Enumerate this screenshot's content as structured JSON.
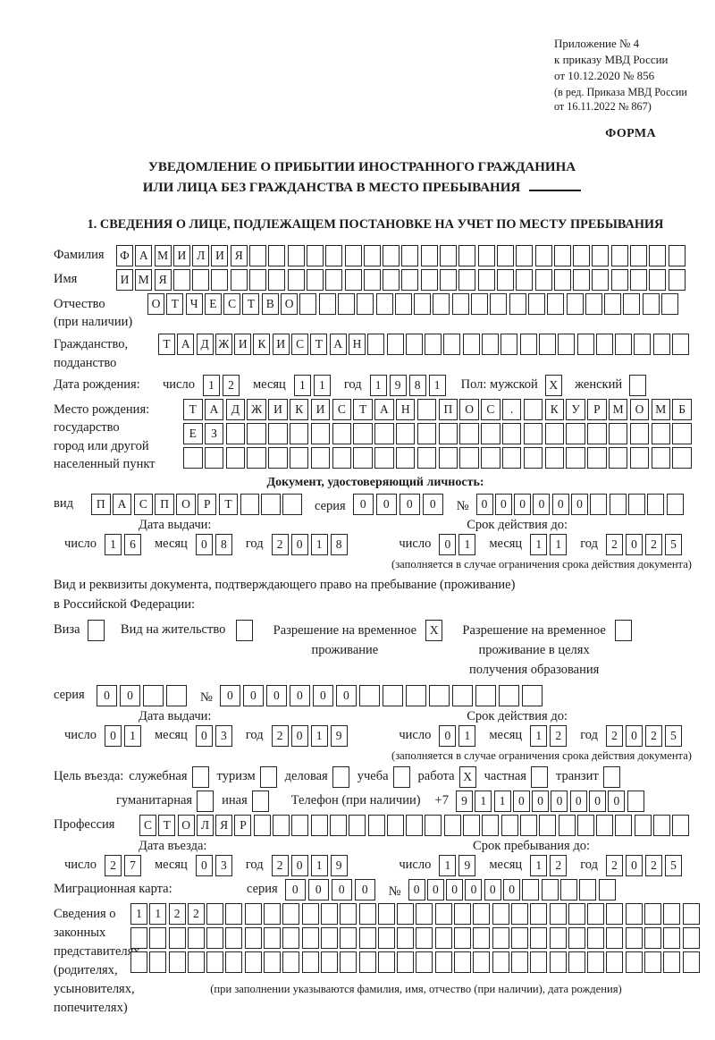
{
  "header": {
    "note_lines": [
      "Приложение № 4",
      "к приказу МВД России",
      "от 10.12.2020 № 856"
    ],
    "note_sub_lines": [
      "(в ред. Приказа МВД России",
      "от 16.11.2022 № 867)"
    ],
    "form_label": "ФОРМА"
  },
  "title": {
    "line1": "УВЕДОМЛЕНИЕ О ПРИБЫТИИ ИНОСТРАННОГО ГРАЖДАНИНА",
    "line2": "ИЛИ ЛИЦА БЕЗ ГРАЖДАНСТВА В МЕСТО ПРЕБЫВАНИЯ"
  },
  "section1_heading": "1. СВЕДЕНИЯ О ЛИЦЕ, ПОДЛЕЖАЩЕМ ПОСТАНОВКЕ НА УЧЕТ ПО МЕСТУ ПРЕБЫВАНИЯ",
  "labels": {
    "surname": "Фамилия",
    "name": "Имя",
    "patronymic": "Отчество\n(при наличии)",
    "citizenship": "Гражданство,\nподданство",
    "birth_date": "Дата рождения:",
    "day": "число",
    "month": "месяц",
    "year": "год",
    "sex_male": "Пол: мужской",
    "sex_female": "женский",
    "birth_place": "Место рождения:\nгосударство\nгород или другой\nнаселенный пункт",
    "identity_doc_heading": "Документ, удостоверяющий личность:",
    "doc_type": "вид",
    "series": "серия",
    "number": "№",
    "issue_date": "Дата выдачи:",
    "valid_until": "Срок действия до:",
    "restriction_note": "(заполняется в случае ограничения срока действия документа)",
    "residence_doc_line1": "Вид и реквизиты документа, подтверждающего право на пребывание (проживание)",
    "residence_doc_line2": "в Российской Федерации:",
    "visa": "Виза",
    "residence_permit": "Вид на жительство",
    "temp_permit": "Разрешение на временное\nпроживание",
    "edu_permit": "Разрешение на временное\nпроживание в целях\nполучения образования",
    "purpose": "Цель въезда:",
    "phone": "Телефон (при наличии)",
    "phone_prefix": "+7",
    "profession": "Профессия",
    "entry_date": "Дата въезда:",
    "stay_until": "Срок пребывания до:",
    "migration_card": "Миграционная карта:",
    "representatives": "Сведения о\nзаконных\nпредставителях\n(родителях,\nусыновителях,\nпопечителях)",
    "representatives_note": "(при заполнении указываются фамилия, имя, отчество (при наличии), дата рождения)"
  },
  "boxes": {
    "surname": {
      "cells": 30,
      "value": "ФАМИЛИЯ"
    },
    "name": {
      "cells": 30,
      "value": "ИМЯ"
    },
    "patronymic": {
      "cells": 28,
      "value": "ОТЧЕСТВО"
    },
    "citizenship": {
      "cells": 28,
      "value": "ТАДЖИКИСТАН"
    },
    "birth_place_row1": {
      "cells": 24,
      "value": "ТАДЖИКИСТАН ПОС. КУРМОМБ"
    },
    "birth_place_row2": {
      "cells": 24,
      "value": "ЕЗ"
    },
    "birth_place_row3": {
      "cells": 24,
      "value": ""
    },
    "doc_type": {
      "cells": 10,
      "value": "ПАСПОРТ"
    },
    "doc_series": {
      "cells": 4,
      "value": "0000"
    },
    "doc_number": {
      "cells": 11,
      "value": "000000"
    },
    "permit_series": {
      "cells": 4,
      "value": "00"
    },
    "permit_number": {
      "cells": 14,
      "value": "000000"
    },
    "phone": {
      "cells": 10,
      "value": "911000000"
    },
    "profession": {
      "cells": 29,
      "value": "СТОЛЯР"
    },
    "migration_series": {
      "cells": 4,
      "value": "0000"
    },
    "migration_number": {
      "cells": 11,
      "value": "000000"
    },
    "representatives_row1": {
      "cells": 30,
      "value": "1122"
    },
    "representatives_row2": {
      "cells": 30,
      "value": ""
    },
    "representatives_row3": {
      "cells": 30,
      "value": ""
    }
  },
  "dates": {
    "birth": {
      "day": "12",
      "month": "11",
      "year": "1981"
    },
    "doc_issue": {
      "day": "16",
      "month": "08",
      "year": "2018"
    },
    "doc_valid": {
      "day": "01",
      "month": "11",
      "year": "2025"
    },
    "permit_issue": {
      "day": "01",
      "month": "03",
      "year": "2019"
    },
    "permit_valid": {
      "day": "01",
      "month": "12",
      "year": "2025"
    },
    "entry": {
      "day": "27",
      "month": "03",
      "year": "2019"
    },
    "stay_until": {
      "day": "19",
      "month": "12",
      "year": "2025"
    }
  },
  "checkboxes": {
    "male": true,
    "female": false,
    "visa": false,
    "residence_permit": false,
    "temp_permit": true,
    "edu_permit": false
  },
  "purpose_options_row1": [
    {
      "label": "служебная",
      "checked": false
    },
    {
      "label": "туризм",
      "checked": false
    },
    {
      "label": "деловая",
      "checked": false
    },
    {
      "label": "учеба",
      "checked": false
    },
    {
      "label": "работа",
      "checked": true
    },
    {
      "label": "частная",
      "checked": false
    },
    {
      "label": "транзит",
      "checked": false
    }
  ],
  "purpose_options_row2": [
    {
      "label": "гуманитарная",
      "checked": false
    },
    {
      "label": "иная",
      "checked": false
    }
  ]
}
